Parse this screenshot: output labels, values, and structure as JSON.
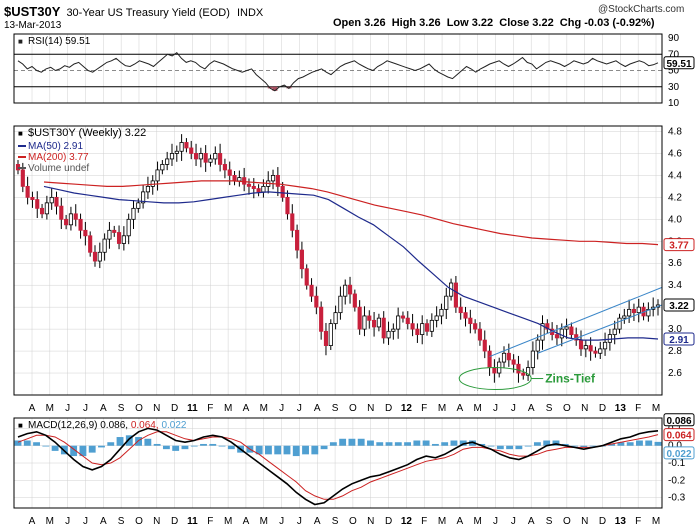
{
  "header": {
    "symbol": "$UST30Y",
    "description": "30-Year US Treasury Yield (EOD)",
    "exchange": "INDX",
    "date": "13-Mar-2013",
    "quote_line": "Open 3.26  High 3.26  Low 3.22  Close 3.22  Chg -0.03 (-0.92%)",
    "watermark": "@StockCharts.com"
  },
  "colors": {
    "up_bar": "#ffffff",
    "down_bar": "#c8203c",
    "ma50": "#1e2a8c",
    "ma200": "#cc2222",
    "macd_line": "#000000",
    "signal_line": "#cc2222",
    "histogram": "#4f9fd1",
    "rsi_line": "#222222",
    "rsi_oversold_fill": "#a85060",
    "annotation": "#2a9a3a",
    "grid": "#d0d0d0"
  },
  "chart_data": [
    {
      "type": "line",
      "name": "rsi-panel",
      "title": "RSI(14) 59.51",
      "ylim": [
        10,
        95
      ],
      "y_ticks": [
        "90",
        "70",
        "50",
        "30",
        "10"
      ],
      "current_value_label": "59.51",
      "current_value": 59.51,
      "reference_lines": [
        70,
        30
      ],
      "values": [
        62,
        58,
        52,
        55,
        50,
        48,
        52,
        54,
        50,
        52,
        56,
        54,
        58,
        60,
        55,
        50,
        48,
        52,
        56,
        60,
        62,
        65,
        60,
        56,
        55,
        58,
        62,
        60,
        58,
        55,
        60,
        65,
        70,
        68,
        72,
        65,
        60,
        62,
        60,
        55,
        52,
        58,
        62,
        60,
        58,
        55,
        52,
        50,
        48,
        50,
        52,
        45,
        40,
        35,
        28,
        25,
        30,
        32,
        28,
        35,
        40,
        42,
        45,
        48,
        50,
        52,
        48,
        45,
        50,
        55,
        58,
        60,
        62,
        58,
        55,
        52,
        50,
        55,
        58,
        62,
        60,
        58,
        56,
        54,
        52,
        50,
        52,
        55,
        58,
        52,
        48,
        45,
        42,
        40,
        45,
        50,
        55,
        52,
        48,
        52,
        55,
        58,
        60,
        62,
        58,
        55,
        58,
        62,
        66,
        60,
        58,
        52,
        56,
        60,
        62,
        60,
        58,
        55,
        58,
        62,
        60,
        58,
        60,
        65,
        62,
        60,
        58,
        60,
        62,
        58,
        55,
        58,
        60,
        62,
        60,
        56,
        57,
        59.51
      ]
    },
    {
      "type": "candlestick",
      "name": "price-panel",
      "title": "$UST30Y (Weekly) 3.22",
      "legend": [
        {
          "label": "MA(50) 2.91",
          "color": "#1e2a8c"
        },
        {
          "label": "MA(200) 3.77",
          "color": "#cc2222"
        },
        {
          "label": "Volume undef",
          "color": "#555555"
        }
      ],
      "ylim": [
        2.4,
        4.85
      ],
      "y_ticks": [
        "4.8",
        "4.6",
        "4.4",
        "4.2",
        "4.0",
        "3.8",
        "3.6",
        "3.4",
        "3.2",
        "3.0",
        "2.8",
        "2.6"
      ],
      "value_tags": [
        {
          "text": "3.77",
          "value": 3.77,
          "color": "#cc2222"
        },
        {
          "text": "3.22",
          "value": 3.22,
          "color": "#000000"
        },
        {
          "text": "2.91",
          "value": 2.91,
          "color": "#1e2a8c"
        }
      ],
      "x_axis": [
        "A",
        "M",
        "J",
        "J",
        "A",
        "S",
        "O",
        "N",
        "D",
        "11",
        "F",
        "M",
        "A",
        "M",
        "J",
        "J",
        "A",
        "S",
        "O",
        "N",
        "D",
        "12",
        "F",
        "M",
        "A",
        "M",
        "J",
        "J",
        "A",
        "S",
        "O",
        "N",
        "D",
        "13",
        "F",
        "M"
      ],
      "closes": [
        4.45,
        4.3,
        4.2,
        4.18,
        4.1,
        4.05,
        4.15,
        4.2,
        4.12,
        4.0,
        3.95,
        4.05,
        4.0,
        3.9,
        3.85,
        3.7,
        3.62,
        3.7,
        3.82,
        3.9,
        3.88,
        3.78,
        3.85,
        4.0,
        4.1,
        4.15,
        4.25,
        4.3,
        4.35,
        4.45,
        4.5,
        4.55,
        4.6,
        4.62,
        4.7,
        4.65,
        4.6,
        4.55,
        4.6,
        4.52,
        4.55,
        4.6,
        4.5,
        4.45,
        4.4,
        4.35,
        4.38,
        4.32,
        4.3,
        4.28,
        4.25,
        4.3,
        4.35,
        4.4,
        4.3,
        4.2,
        4.05,
        3.9,
        3.72,
        3.55,
        3.4,
        3.3,
        3.2,
        2.98,
        2.85,
        3.05,
        3.15,
        3.3,
        3.4,
        3.32,
        3.2,
        3.0,
        3.12,
        3.08,
        3.02,
        3.1,
        2.92,
        2.98,
        3.0,
        3.12,
        3.1,
        3.05,
        3.0,
        2.95,
        3.05,
        2.98,
        3.08,
        3.12,
        3.18,
        3.3,
        3.42,
        3.2,
        3.15,
        3.1,
        3.05,
        3.0,
        2.9,
        2.8,
        2.65,
        2.6,
        2.7,
        2.78,
        2.72,
        2.68,
        2.6,
        2.58,
        2.65,
        2.8,
        2.9,
        3.05,
        3.0,
        2.95,
        2.92,
        3.0,
        3.02,
        2.95,
        2.9,
        2.82,
        2.85,
        2.8,
        2.78,
        2.82,
        2.88,
        2.95,
        3.0,
        3.1,
        3.12,
        3.18,
        3.15,
        3.2,
        3.12,
        3.18,
        3.2,
        3.22
      ],
      "ma50": [
        4.3,
        4.27,
        4.24,
        4.22,
        4.2,
        4.18,
        4.17,
        4.16,
        4.15,
        4.15,
        4.16,
        4.18,
        4.2,
        4.22,
        4.24,
        4.25,
        4.24,
        4.23,
        4.22,
        4.18,
        4.1,
        4.02,
        3.95,
        3.85,
        3.75,
        3.62,
        3.5,
        3.38,
        3.3,
        3.25,
        3.2,
        3.15,
        3.1,
        3.05,
        2.98,
        2.92,
        2.9,
        2.9,
        2.91,
        2.92,
        2.92,
        2.91
      ],
      "ma200": [
        4.34,
        4.33,
        4.32,
        4.31,
        4.3,
        4.3,
        4.31,
        4.32,
        4.33,
        4.34,
        4.35,
        4.35,
        4.35,
        4.34,
        4.33,
        4.32,
        4.3,
        4.28,
        4.25,
        4.21,
        4.17,
        4.13,
        4.1,
        4.07,
        4.04,
        4.0,
        3.96,
        3.93,
        3.9,
        3.87,
        3.85,
        3.83,
        3.82,
        3.81,
        3.8,
        3.8,
        3.79,
        3.78,
        3.78,
        3.77
      ],
      "annotation": "Zins-Tief"
    },
    {
      "type": "line",
      "name": "macd-panel",
      "title_prefix": "MACD(12,26,9)",
      "title_macd": "0.086",
      "title_signal": "0.064",
      "title_hist": "0.022",
      "ylim": [
        -0.36,
        0.16
      ],
      "y_ticks": [
        "0.1",
        "0.0",
        "-0.1",
        "-0.2",
        "-0.3"
      ],
      "value_tags": [
        {
          "text": "0.086",
          "value": 0.086,
          "color": "#000000"
        },
        {
          "text": "0.064",
          "value": 0.064,
          "color": "#cc2222"
        },
        {
          "text": "0.022",
          "value": 0.022,
          "color": "#4f9fd1"
        }
      ],
      "x_axis": [
        "A",
        "M",
        "J",
        "J",
        "A",
        "S",
        "O",
        "N",
        "D",
        "11",
        "F",
        "M",
        "A",
        "M",
        "J",
        "J",
        "A",
        "S",
        "O",
        "N",
        "D",
        "12",
        "F",
        "M",
        "A",
        "M",
        "J",
        "J",
        "A",
        "S",
        "O",
        "N",
        "D",
        "13",
        "F",
        "M"
      ],
      "macd": [
        0.05,
        0.07,
        0.08,
        0.06,
        0.02,
        -0.03,
        -0.08,
        -0.12,
        -0.14,
        -0.12,
        -0.08,
        -0.02,
        0.04,
        0.08,
        0.1,
        0.09,
        0.06,
        0.03,
        0.02,
        0.03,
        0.05,
        0.06,
        0.05,
        0.02,
        -0.02,
        -0.06,
        -0.1,
        -0.14,
        -0.18,
        -0.22,
        -0.27,
        -0.31,
        -0.34,
        -0.33,
        -0.29,
        -0.25,
        -0.22,
        -0.2,
        -0.18,
        -0.17,
        -0.15,
        -0.13,
        -0.11,
        -0.08,
        -0.06,
        -0.07,
        -0.05,
        -0.02,
        0.01,
        0.02,
        0.0,
        -0.02,
        -0.05,
        -0.07,
        -0.08,
        -0.06,
        -0.03,
        0.0,
        0.01,
        0.0,
        -0.01,
        -0.02,
        -0.01,
        0.0,
        0.02,
        0.04,
        0.05,
        0.07,
        0.08,
        0.086
      ],
      "signal": [
        0.02,
        0.04,
        0.06,
        0.06,
        0.05,
        0.02,
        -0.02,
        -0.06,
        -0.1,
        -0.11,
        -0.1,
        -0.07,
        -0.02,
        0.03,
        0.06,
        0.08,
        0.08,
        0.06,
        0.04,
        0.03,
        0.04,
        0.05,
        0.05,
        0.04,
        0.02,
        -0.02,
        -0.05,
        -0.09,
        -0.13,
        -0.17,
        -0.21,
        -0.26,
        -0.29,
        -0.31,
        -0.31,
        -0.29,
        -0.26,
        -0.24,
        -0.21,
        -0.19,
        -0.17,
        -0.15,
        -0.13,
        -0.11,
        -0.09,
        -0.08,
        -0.07,
        -0.05,
        -0.02,
        -0.01,
        -0.01,
        -0.02,
        -0.03,
        -0.05,
        -0.06,
        -0.06,
        -0.05,
        -0.03,
        -0.02,
        -0.01,
        -0.01,
        -0.01,
        -0.01,
        0.0,
        0.01,
        0.02,
        0.03,
        0.04,
        0.05,
        0.064
      ]
    }
  ]
}
